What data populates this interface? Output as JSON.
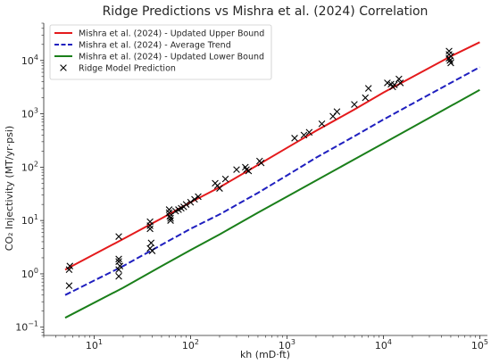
{
  "chart_data": {
    "type": "line",
    "title": "Ridge Predictions vs Mishra et al. (2024) Correlation",
    "xlabel": "kh (mD·ft)",
    "ylabel": "CO₂ Injectivity (MT/yr·psi)",
    "xscale": "log",
    "yscale": "log",
    "xlim": [
      3,
      120000
    ],
    "ylim": [
      0.07,
      50000
    ],
    "x_ticks": [
      {
        "value": 10,
        "base": "10",
        "exp": "1"
      },
      {
        "value": 100,
        "base": "10",
        "exp": "2"
      },
      {
        "value": 1000,
        "base": "10",
        "exp": "3"
      },
      {
        "value": 10000,
        "base": "10",
        "exp": "4"
      },
      {
        "value": 100000,
        "base": "10",
        "exp": "5"
      }
    ],
    "y_ticks": [
      {
        "value": 0.1,
        "base": "10",
        "exp": "−1"
      },
      {
        "value": 1,
        "base": "10",
        "exp": "0"
      },
      {
        "value": 10,
        "base": "10",
        "exp": "1"
      },
      {
        "value": 100,
        "base": "10",
        "exp": "2"
      },
      {
        "value": 1000,
        "base": "10",
        "exp": "3"
      },
      {
        "value": 10000,
        "base": "10",
        "exp": "4"
      }
    ],
    "grid": false,
    "legend_position": "top-left",
    "series": [
      {
        "name": "Mishra et al. (2024) - Updated Upper Bound",
        "kind": "line",
        "color": "#e41a1c",
        "dash": "solid",
        "x": [
          5,
          20,
          50,
          100,
          200,
          500,
          1000,
          2000,
          5000,
          10000,
          20000,
          50000,
          100000
        ],
        "y": [
          1.2,
          4.5,
          11,
          22,
          42,
          110,
          230,
          480,
          1200,
          2500,
          4900,
          12000,
          22000
        ]
      },
      {
        "name": "Mishra et al. (2024) - Average Trend",
        "kind": "line",
        "color": "#1f1fbf",
        "dash": "dashed",
        "x": [
          5,
          20,
          50,
          100,
          200,
          500,
          1000,
          2000,
          5000,
          10000,
          20000,
          50000,
          100000
        ],
        "y": [
          0.4,
          1.4,
          3.5,
          7,
          13,
          33,
          70,
          150,
          380,
          780,
          1550,
          3800,
          7500
        ]
      },
      {
        "name": "Mishra et al. (2024) - Updated Lower Bound",
        "kind": "line",
        "color": "#1a7f1a",
        "dash": "solid",
        "x": [
          5,
          20,
          50,
          100,
          200,
          500,
          1000,
          2000,
          5000,
          10000,
          20000,
          50000,
          100000
        ],
        "y": [
          0.15,
          0.55,
          1.4,
          2.8,
          5.5,
          14,
          28,
          56,
          140,
          280,
          560,
          1400,
          2800
        ]
      },
      {
        "name": "Ridge Model Prediction",
        "kind": "scatter",
        "color": "#000000",
        "marker": "x",
        "x": [
          5.5,
          5.6,
          5.5,
          18,
          18,
          18,
          18.5,
          18,
          18,
          38,
          38,
          38,
          39,
          38,
          40,
          60,
          60,
          61,
          62,
          62,
          70,
          75,
          80,
          85,
          90,
          100,
          110,
          120,
          180,
          190,
          200,
          230,
          300,
          370,
          380,
          400,
          520,
          540,
          1200,
          1500,
          1700,
          2300,
          3000,
          3300,
          5000,
          6500,
          7000,
          11000,
          12000,
          12500,
          13000,
          14500,
          15000,
          48000,
          48000,
          48000,
          49000,
          50000,
          50000
        ],
        "y": [
          1.2,
          1.4,
          0.6,
          5,
          1.9,
          1.7,
          1.4,
          1.2,
          0.9,
          9.5,
          8,
          7,
          3.8,
          3,
          2.7,
          16,
          14,
          12,
          11,
          10,
          15,
          16,
          17,
          18,
          20,
          22,
          25,
          28,
          50,
          45,
          40,
          60,
          90,
          100,
          90,
          85,
          130,
          120,
          350,
          400,
          450,
          650,
          900,
          1100,
          1500,
          2000,
          3000,
          3800,
          3600,
          3200,
          3500,
          4500,
          3800,
          15000,
          13000,
          11000,
          10000,
          12000,
          9000
        ]
      }
    ]
  }
}
